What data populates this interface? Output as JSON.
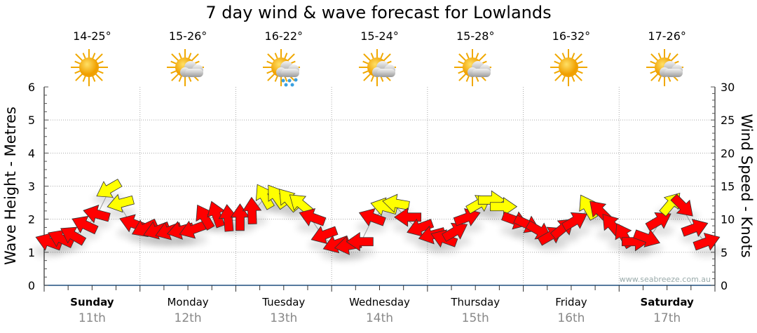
{
  "title": "7 day wind & wave forecast for Lowlands",
  "days": [
    {
      "name": "Sunday",
      "date": "11th",
      "temp": "14-25°",
      "icon": "sunny",
      "bold": true
    },
    {
      "name": "Monday",
      "date": "12th",
      "temp": "15-26°",
      "icon": "partly-cloudy",
      "bold": false
    },
    {
      "name": "Tuesday",
      "date": "13th",
      "temp": "16-22°",
      "icon": "rain",
      "bold": false
    },
    {
      "name": "Wednesday",
      "date": "14th",
      "temp": "15-24°",
      "icon": "partly-cloudy",
      "bold": false
    },
    {
      "name": "Thursday",
      "date": "15th",
      "temp": "15-28°",
      "icon": "partly-cloudy",
      "bold": false
    },
    {
      "name": "Friday",
      "date": "16th",
      "temp": "16-32°",
      "icon": "sunny",
      "bold": false
    },
    {
      "name": "Saturday",
      "date": "17th",
      "temp": "17-26°",
      "icon": "partly-cloudy",
      "bold": true
    }
  ],
  "colors": {
    "red": "#ff0000",
    "yellow": "#ffff00",
    "axis": "#1f4f7f",
    "grid": "#aaaaaa",
    "sun": "#f5b400"
  },
  "chart_data": {
    "type": "scatter",
    "title": "7 day wind & wave forecast for Lowlands",
    "ylabel": "Wave Height - Metres",
    "y2label": "Wind Speed - Knots",
    "ylim": [
      0,
      6
    ],
    "y2lim": [
      0,
      30
    ],
    "yticks": [
      "0",
      "1",
      "2",
      "3",
      "4",
      "5",
      "6"
    ],
    "y2ticks": [
      "0",
      "5",
      "10",
      "15",
      "20",
      "25",
      "30"
    ],
    "watermark": "www.seabreeze.com.au",
    "interval_hours": 3,
    "wind": [
      {
        "kn": 6.6,
        "dir": 200,
        "c": "red"
      },
      {
        "kn": 7.1,
        "dir": 205,
        "c": "red"
      },
      {
        "kn": 7.6,
        "dir": 210,
        "c": "red"
      },
      {
        "kn": 9.2,
        "dir": 205,
        "c": "red"
      },
      {
        "kn": 10.8,
        "dir": 195,
        "c": "red"
      },
      {
        "kn": 14.5,
        "dir": 150,
        "c": "yellow"
      },
      {
        "kn": 12.4,
        "dir": 165,
        "c": "yellow"
      },
      {
        "kn": 9.4,
        "dir": 200,
        "c": "red"
      },
      {
        "kn": 8.6,
        "dir": 155,
        "c": "red"
      },
      {
        "kn": 8.3,
        "dir": 160,
        "c": "red"
      },
      {
        "kn": 8.2,
        "dir": 160,
        "c": "red"
      },
      {
        "kn": 8.3,
        "dir": 165,
        "c": "red"
      },
      {
        "kn": 8.4,
        "dir": 160,
        "c": "red"
      },
      {
        "kn": 10.4,
        "dir": 240,
        "c": "red"
      },
      {
        "kn": 10.8,
        "dir": 250,
        "c": "red"
      },
      {
        "kn": 10.2,
        "dir": 265,
        "c": "red"
      },
      {
        "kn": 10.3,
        "dir": 270,
        "c": "red"
      },
      {
        "kn": 11.3,
        "dir": 268,
        "c": "red"
      },
      {
        "kn": 13.5,
        "dir": 240,
        "c": "yellow"
      },
      {
        "kn": 13.5,
        "dir": 235,
        "c": "yellow"
      },
      {
        "kn": 13,
        "dir": 230,
        "c": "yellow"
      },
      {
        "kn": 12.4,
        "dir": 220,
        "c": "yellow"
      },
      {
        "kn": 10.3,
        "dir": 200,
        "c": "red"
      },
      {
        "kn": 7.6,
        "dir": 160,
        "c": "red"
      },
      {
        "kn": 6.2,
        "dir": 160,
        "c": "red"
      },
      {
        "kn": 6,
        "dir": 170,
        "c": "red"
      },
      {
        "kn": 6.6,
        "dir": 180,
        "c": "red"
      },
      {
        "kn": 10.3,
        "dir": 200,
        "c": "red"
      },
      {
        "kn": 11.9,
        "dir": 195,
        "c": "yellow"
      },
      {
        "kn": 12.4,
        "dir": 190,
        "c": "yellow"
      },
      {
        "kn": 10.3,
        "dir": 180,
        "c": "red"
      },
      {
        "kn": 8.7,
        "dir": 160,
        "c": "red"
      },
      {
        "kn": 7.6,
        "dir": 165,
        "c": "red"
      },
      {
        "kn": 7.1,
        "dir": 200,
        "c": "red"
      },
      {
        "kn": 8.2,
        "dir": 330,
        "c": "red"
      },
      {
        "kn": 10.3,
        "dir": 340,
        "c": "red"
      },
      {
        "kn": 12.4,
        "dir": 330,
        "c": "yellow"
      },
      {
        "kn": 12.9,
        "dir": 0,
        "c": "yellow"
      },
      {
        "kn": 11.9,
        "dir": 0,
        "c": "yellow"
      },
      {
        "kn": 9.8,
        "dir": 20,
        "c": "red"
      },
      {
        "kn": 9.2,
        "dir": 25,
        "c": "red"
      },
      {
        "kn": 8.2,
        "dir": 30,
        "c": "red"
      },
      {
        "kn": 7.6,
        "dir": 330,
        "c": "red"
      },
      {
        "kn": 8.7,
        "dir": 320,
        "c": "red"
      },
      {
        "kn": 9.8,
        "dir": 330,
        "c": "red"
      },
      {
        "kn": 11.9,
        "dir": 240,
        "c": "yellow"
      },
      {
        "kn": 11.3,
        "dir": 225,
        "c": "red"
      },
      {
        "kn": 9.2,
        "dir": 230,
        "c": "red"
      },
      {
        "kn": 7.6,
        "dir": 240,
        "c": "red"
      },
      {
        "kn": 6.6,
        "dir": 0,
        "c": "red"
      },
      {
        "kn": 7.1,
        "dir": 20,
        "c": "red"
      },
      {
        "kn": 9.8,
        "dir": 330,
        "c": "red"
      },
      {
        "kn": 12.4,
        "dir": 310,
        "c": "yellow"
      },
      {
        "kn": 11.9,
        "dir": 45,
        "c": "red"
      },
      {
        "kn": 8.7,
        "dir": 340,
        "c": "red"
      },
      {
        "kn": 6.6,
        "dir": 340,
        "c": "red"
      }
    ]
  }
}
